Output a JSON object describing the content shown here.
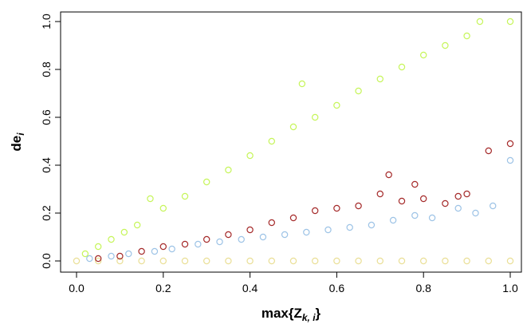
{
  "chart_data": {
    "type": "scatter",
    "title": "",
    "xlabel": {
      "base": "max{Z",
      "sub": "k, i",
      "close": "}"
    },
    "ylabel": {
      "base": "de",
      "sub": "i"
    },
    "xlim": [
      0,
      1
    ],
    "ylim": [
      0,
      1
    ],
    "xticks": [
      "0.0",
      "0.2",
      "0.4",
      "0.6",
      "0.8",
      "1.0"
    ],
    "yticks": [
      "0.0",
      "0.2",
      "0.4",
      "0.6",
      "0.8",
      "1.0"
    ],
    "grid": false,
    "legend": false,
    "marker": "open-circle",
    "series": [
      {
        "color": "#eadf96",
        "points": [
          [
            0.0,
            0.0
          ],
          [
            0.05,
            0.0
          ],
          [
            0.1,
            0.0
          ],
          [
            0.15,
            0.0
          ],
          [
            0.2,
            0.0
          ],
          [
            0.25,
            0.0
          ],
          [
            0.3,
            0.0
          ],
          [
            0.35,
            0.0
          ],
          [
            0.4,
            0.0
          ],
          [
            0.45,
            0.0
          ],
          [
            0.5,
            0.0
          ],
          [
            0.55,
            0.0
          ],
          [
            0.6,
            0.0
          ],
          [
            0.65,
            0.0
          ],
          [
            0.7,
            0.0
          ],
          [
            0.75,
            0.0
          ],
          [
            0.8,
            0.0
          ],
          [
            0.85,
            0.0
          ],
          [
            0.9,
            0.0
          ],
          [
            0.95,
            0.0
          ],
          [
            1.0,
            0.0
          ]
        ]
      },
      {
        "color": "#a52a2a",
        "points": [
          [
            0.05,
            0.01
          ],
          [
            0.1,
            0.02
          ],
          [
            0.15,
            0.04
          ],
          [
            0.2,
            0.06
          ],
          [
            0.25,
            0.07
          ],
          [
            0.3,
            0.09
          ],
          [
            0.35,
            0.11
          ],
          [
            0.4,
            0.13
          ],
          [
            0.45,
            0.16
          ],
          [
            0.5,
            0.18
          ],
          [
            0.55,
            0.21
          ],
          [
            0.6,
            0.22
          ],
          [
            0.65,
            0.23
          ],
          [
            0.7,
            0.28
          ],
          [
            0.72,
            0.36
          ],
          [
            0.75,
            0.25
          ],
          [
            0.78,
            0.32
          ],
          [
            0.8,
            0.26
          ],
          [
            0.85,
            0.24
          ],
          [
            0.88,
            0.27
          ],
          [
            0.9,
            0.28
          ],
          [
            0.95,
            0.46
          ],
          [
            1.0,
            0.49
          ]
        ]
      },
      {
        "color": "#9dc3e6",
        "points": [
          [
            0.03,
            0.01
          ],
          [
            0.08,
            0.02
          ],
          [
            0.12,
            0.03
          ],
          [
            0.18,
            0.04
          ],
          [
            0.22,
            0.05
          ],
          [
            0.28,
            0.07
          ],
          [
            0.33,
            0.08
          ],
          [
            0.38,
            0.09
          ],
          [
            0.43,
            0.1
          ],
          [
            0.48,
            0.11
          ],
          [
            0.53,
            0.12
          ],
          [
            0.58,
            0.13
          ],
          [
            0.63,
            0.14
          ],
          [
            0.68,
            0.15
          ],
          [
            0.73,
            0.17
          ],
          [
            0.78,
            0.19
          ],
          [
            0.82,
            0.18
          ],
          [
            0.88,
            0.22
          ],
          [
            0.92,
            0.2
          ],
          [
            0.96,
            0.23
          ],
          [
            1.0,
            0.42
          ]
        ]
      },
      {
        "color": "#c6f55a",
        "points": [
          [
            0.02,
            0.03
          ],
          [
            0.05,
            0.06
          ],
          [
            0.08,
            0.09
          ],
          [
            0.11,
            0.12
          ],
          [
            0.14,
            0.15
          ],
          [
            0.17,
            0.26
          ],
          [
            0.2,
            0.22
          ],
          [
            0.25,
            0.27
          ],
          [
            0.3,
            0.33
          ],
          [
            0.35,
            0.38
          ],
          [
            0.4,
            0.44
          ],
          [
            0.45,
            0.5
          ],
          [
            0.5,
            0.56
          ],
          [
            0.52,
            0.74
          ],
          [
            0.55,
            0.6
          ],
          [
            0.6,
            0.65
          ],
          [
            0.65,
            0.71
          ],
          [
            0.7,
            0.76
          ],
          [
            0.75,
            0.81
          ],
          [
            0.8,
            0.86
          ],
          [
            0.85,
            0.9
          ],
          [
            0.9,
            0.94
          ],
          [
            0.93,
            1.0
          ],
          [
            1.0,
            1.0
          ]
        ]
      }
    ]
  }
}
